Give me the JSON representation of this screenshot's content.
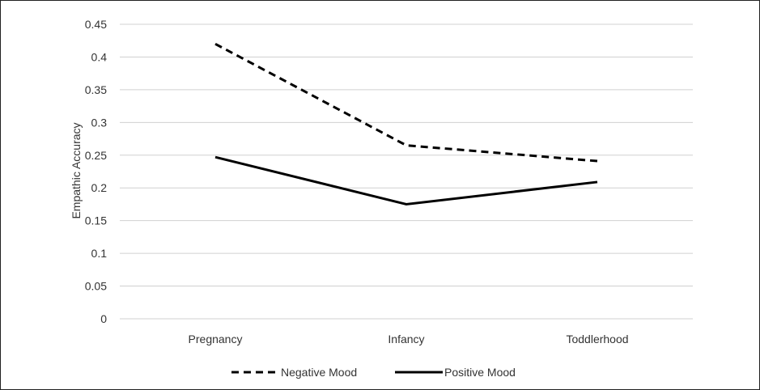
{
  "chart_data": {
    "type": "line",
    "categories": [
      "Pregnancy",
      "Infancy",
      "Toddlerhood"
    ],
    "series": [
      {
        "name": "Negative Mood",
        "values": [
          0.42,
          0.265,
          0.241
        ],
        "style": "dashed",
        "color": "#000000"
      },
      {
        "name": "Positive Mood",
        "values": [
          0.247,
          0.175,
          0.209
        ],
        "style": "solid",
        "color": "#000000"
      }
    ],
    "ylabel": "Empathic Accuracy",
    "xlabel": "",
    "ylim": [
      0,
      0.45
    ],
    "yticks": [
      "0",
      "0.05",
      "0.1",
      "0.15",
      "0.2",
      "0.25",
      "0.3",
      "0.35",
      "0.4",
      "0.45"
    ],
    "grid": true,
    "legend_position": "bottom"
  }
}
